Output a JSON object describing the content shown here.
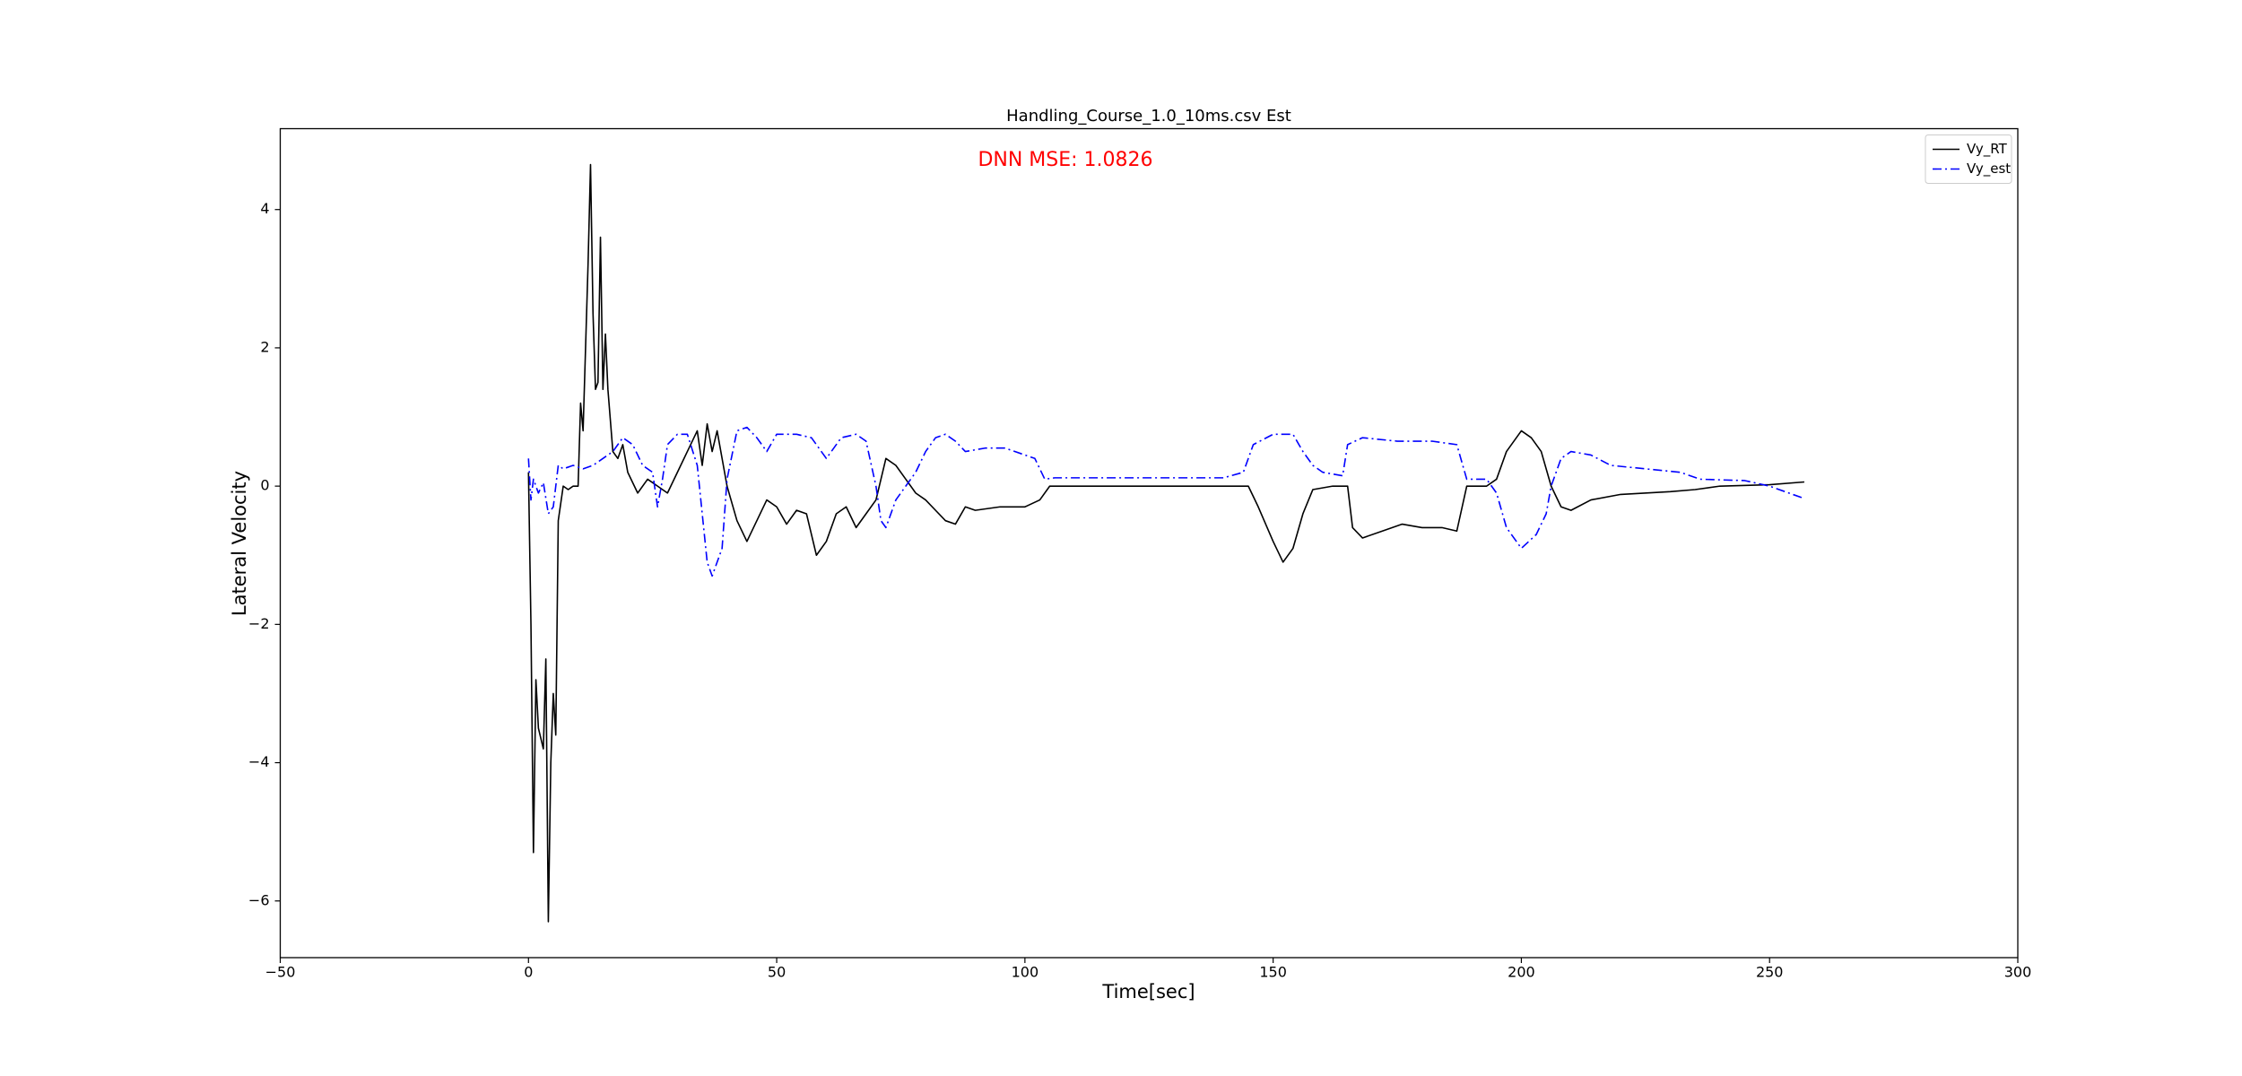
{
  "chart_data": {
    "type": "line",
    "title": "Handling_Course_1.0_10ms.csv Est",
    "annotation": "DNN MSE: 1.0826",
    "x_label": "Time[sec]",
    "y_label": "Lateral Velocity",
    "xlim": [
      -50,
      300
    ],
    "ylim": [
      -6.82,
      5.17
    ],
    "xticks": [
      {
        "value": -50,
        "label": "−50"
      },
      0,
      50,
      100,
      150,
      200,
      250,
      300
    ],
    "yticks": [
      {
        "value": -6,
        "label": "−6"
      },
      {
        "value": -4,
        "label": "−4"
      },
      {
        "value": -2,
        "label": "−2"
      },
      0,
      2,
      4
    ],
    "legend": "upper right",
    "grid": false,
    "series": [
      {
        "name": "Vy_RT",
        "color": "#000000",
        "style": "solid",
        "x": [
          0,
          0.5,
          1,
          1.5,
          2,
          3,
          3.5,
          4,
          4.5,
          5,
          5.5,
          6,
          7,
          8,
          9,
          10,
          10.5,
          11,
          12,
          12.5,
          13,
          13.5,
          14,
          14.5,
          15,
          15.5,
          16,
          17,
          18,
          19,
          20,
          22,
          24,
          26,
          28,
          30,
          32,
          34,
          35,
          36,
          37,
          38,
          40,
          42,
          44,
          46,
          48,
          50,
          52,
          54,
          56,
          58,
          60,
          62,
          64,
          66,
          68,
          70,
          72,
          74,
          76,
          78,
          80,
          82,
          84,
          86,
          88,
          90,
          95,
          100,
          103,
          105,
          110,
          120,
          130,
          140,
          145,
          147,
          150,
          152,
          154,
          156,
          158,
          162,
          165,
          166,
          168,
          172,
          176,
          180,
          184,
          187,
          189,
          193,
          195,
          197,
          200,
          202,
          204,
          206,
          208,
          210,
          214,
          220,
          230,
          235,
          240,
          250,
          257
        ],
        "values": [
          0.2,
          -2,
          -5.3,
          -2.8,
          -3.5,
          -3.8,
          -2.5,
          -6.3,
          -4,
          -3,
          -3.6,
          -0.5,
          0,
          -0.05,
          0,
          0,
          1.2,
          0.8,
          3.2,
          4.65,
          2.5,
          1.4,
          1.5,
          3.6,
          1.4,
          2.2,
          1.4,
          0.5,
          0.4,
          0.6,
          0.2,
          -0.1,
          0.1,
          0,
          -0.1,
          0.2,
          0.5,
          0.8,
          0.3,
          0.9,
          0.5,
          0.8,
          0,
          -0.5,
          -0.8,
          -0.5,
          -0.2,
          -0.3,
          -0.55,
          -0.35,
          -0.4,
          -1,
          -0.8,
          -0.4,
          -0.3,
          -0.6,
          -0.4,
          -0.2,
          0.4,
          0.3,
          0.1,
          -0.1,
          -0.2,
          -0.35,
          -0.5,
          -0.55,
          -0.3,
          -0.35,
          -0.3,
          -0.3,
          -0.2,
          0,
          0,
          0,
          0,
          0,
          0,
          -0.3,
          -0.8,
          -1.1,
          -0.9,
          -0.4,
          -0.05,
          0,
          0,
          -0.6,
          -0.75,
          -0.65,
          -0.55,
          -0.6,
          -0.6,
          -0.65,
          0,
          0,
          0.1,
          0.5,
          0.8,
          0.7,
          0.5,
          0,
          -0.3,
          -0.35,
          -0.2,
          -0.12,
          -0.08,
          -0.05,
          0,
          0.02,
          0.06
        ]
      },
      {
        "name": "Vy_est",
        "color": "#0000ff",
        "style": "dashdot",
        "x": [
          0,
          0.5,
          1,
          2,
          3,
          4,
          5,
          6,
          7,
          9,
          11,
          13,
          15,
          17,
          19,
          21,
          23,
          25,
          26,
          27,
          28,
          30,
          32,
          34,
          36,
          37,
          39,
          40,
          42,
          44,
          46,
          48,
          50,
          54,
          57,
          60,
          63,
          66,
          68,
          70,
          71,
          72,
          74,
          76,
          78,
          80,
          82,
          84,
          86,
          88,
          92,
          96,
          100,
          102,
          104,
          106,
          120,
          140,
          144,
          146,
          150,
          154,
          156,
          158,
          160,
          164,
          165,
          168,
          175,
          182,
          187,
          189,
          193,
          195,
          197,
          200,
          203,
          205,
          206,
          208,
          210,
          214,
          218,
          225,
          232,
          236,
          245,
          250,
          257
        ],
        "values": [
          0.4,
          -0.2,
          0.1,
          -0.1,
          0.05,
          -0.4,
          -0.3,
          0.3,
          0.25,
          0.3,
          0.25,
          0.3,
          0.4,
          0.5,
          0.7,
          0.6,
          0.3,
          0.2,
          -0.3,
          0.1,
          0.6,
          0.75,
          0.75,
          0.3,
          -1.1,
          -1.3,
          -0.9,
          0.1,
          0.8,
          0.85,
          0.7,
          0.5,
          0.75,
          0.75,
          0.7,
          0.4,
          0.7,
          0.75,
          0.65,
          0,
          -0.5,
          -0.6,
          -0.2,
          0,
          0.2,
          0.5,
          0.7,
          0.75,
          0.65,
          0.5,
          0.55,
          0.55,
          0.45,
          0.4,
          0.1,
          0.12,
          0.12,
          0.12,
          0.2,
          0.6,
          0.75,
          0.75,
          0.5,
          0.3,
          0.2,
          0.15,
          0.6,
          0.7,
          0.65,
          0.65,
          0.6,
          0.1,
          0.1,
          -0.1,
          -0.6,
          -0.9,
          -0.7,
          -0.4,
          0,
          0.4,
          0.5,
          0.45,
          0.3,
          0.25,
          0.2,
          0.1,
          0.08,
          0,
          -0.18
        ]
      }
    ]
  }
}
